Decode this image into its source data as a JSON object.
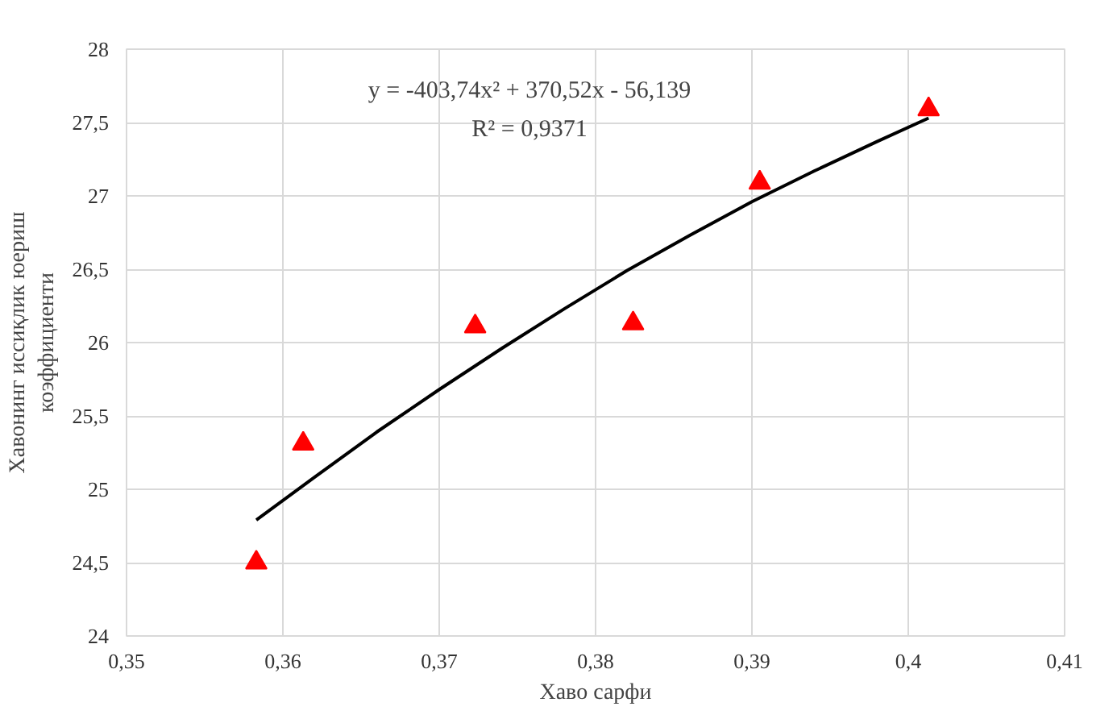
{
  "chart_data": {
    "type": "scatter",
    "xlabel": "Хаво сарфи",
    "ylabel": "Хавонинг иссиқлик юериш коэффициенти",
    "x": [
      0.3583,
      0.3613,
      0.3723,
      0.3824,
      0.3905,
      0.4013
    ],
    "series": [
      {
        "color": "#ff0000",
        "marker": "triangle",
        "values": [
          24.5,
          25.31,
          26.11,
          26.13,
          27.09,
          27.59
        ]
      },
      {
        "type": "line",
        "color": "#000000",
        "line_style": "solid",
        "marker": "none",
        "x": [
          0.3583,
          0.362,
          0.366,
          0.37,
          0.374,
          0.378,
          0.382,
          0.386,
          0.39,
          0.394,
          0.398,
          0.4013
        ],
        "values": [
          24.79,
          25.08,
          25.39,
          25.68,
          25.96,
          26.23,
          26.49,
          26.73,
          26.96,
          27.17,
          27.37,
          27.53
        ]
      }
    ],
    "annotations": [
      "y = -403,74x² + 370,52x - 56,139",
      "R² = 0,9371"
    ],
    "xlim": [
      0.35,
      0.41
    ],
    "ylim": [
      24,
      28
    ],
    "xticks": [
      {
        "value": 0.35,
        "label": "0,35"
      },
      {
        "value": 0.36,
        "label": "0,36"
      },
      {
        "value": 0.37,
        "label": "0,37"
      },
      {
        "value": 0.38,
        "label": "0,38"
      },
      {
        "value": 0.39,
        "label": "0,39"
      },
      {
        "value": 0.4,
        "label": "0,4"
      },
      {
        "value": 0.41,
        "label": "0,41"
      }
    ],
    "yticks": [
      24,
      {
        "value": 24.5,
        "label": "24,5"
      },
      25,
      {
        "value": 25.5,
        "label": "25,5"
      },
      26,
      {
        "value": 26.5,
        "label": "26,5"
      },
      27,
      {
        "value": 27.5,
        "label": "27,5"
      },
      28
    ],
    "grid": true
  }
}
